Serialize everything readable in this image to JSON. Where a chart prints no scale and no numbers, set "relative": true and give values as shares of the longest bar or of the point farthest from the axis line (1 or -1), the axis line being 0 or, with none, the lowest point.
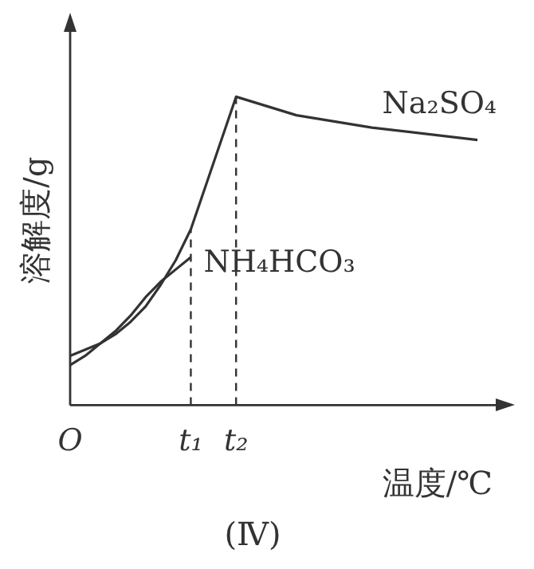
{
  "chart_data": {
    "type": "line",
    "title": "(Ⅳ)",
    "xlabel": "温度/℃",
    "ylabel": "溶解度/g",
    "relative": true,
    "categories": [
      "O",
      null,
      null,
      null,
      null,
      null,
      null,
      null,
      "t₁",
      null,
      null,
      "t₂",
      null,
      null,
      null,
      null,
      null,
      null,
      null,
      null,
      null,
      null,
      null,
      null,
      null,
      null,
      null,
      null,
      null
    ],
    "series": [
      {
        "name": "Na₂SO₄",
        "color": "#333333",
        "values": [
          0.16,
          null,
          0.2,
          0.23,
          0.27,
          0.32,
          0.39,
          0.47,
          0.57,
          null,
          null,
          1,
          null,
          null,
          null,
          0.94,
          null,
          null,
          null,
          null,
          0.9,
          null,
          null,
          null,
          null,
          null,
          null,
          0.86,
          null
        ]
      },
      {
        "name": "NH₄HCO₃",
        "color": "#333333",
        "values": [
          0.13,
          0.16,
          0.2,
          0.24,
          0.29,
          0.35,
          0.4,
          0.44,
          0.48,
          null,
          null,
          null,
          null,
          null,
          null,
          null,
          null,
          null,
          null,
          null,
          null,
          null,
          null,
          null,
          null,
          null,
          null,
          null,
          null
        ]
      }
    ],
    "ref_lines": [
      {
        "axis": "x",
        "value": "t₁",
        "line_style": "dashed"
      },
      {
        "axis": "x",
        "value": "t₂",
        "line_style": "dashed"
      }
    ],
    "grid": false,
    "legend": false,
    "marker": "none",
    "line_style": "solid"
  }
}
